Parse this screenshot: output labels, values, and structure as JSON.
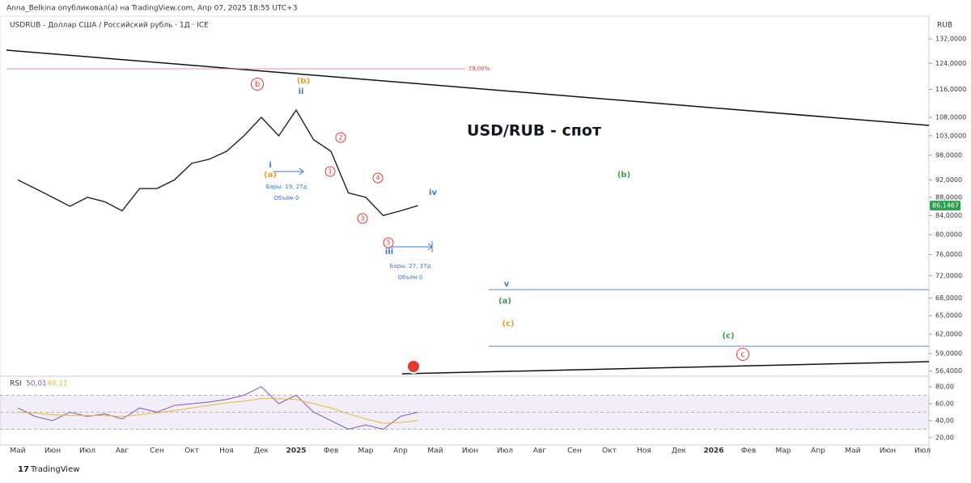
{
  "header": {
    "publisher": "Anna_Belkina опубликовал(а) на TradingView.com, Апр 07, 2025 18:55 UTC+3",
    "symbol": "USDRUB - Доллар США / Российский рубль · 1Д · ICE",
    "currency": "RUB",
    "price_tag": "86,1467"
  },
  "chart_data": [
    {
      "type": "line",
      "log_scale": true,
      "color": "#222222",
      "categories": [
        "Май",
        null,
        "Июн",
        null,
        "Июл",
        null,
        "Авг",
        null,
        "Сен",
        null,
        "Окт",
        null,
        "Ноя",
        null,
        "Дек",
        null,
        "2025",
        null,
        "Фев",
        null,
        "Мар",
        null,
        "Апр",
        null,
        "Май",
        null,
        "Июн",
        null,
        "Июл",
        null,
        "Авг",
        null,
        "Сен",
        null,
        "Окт",
        null,
        "Ноя",
        null,
        "Дек",
        null,
        "2026",
        null,
        "Фев",
        null,
        "Мар",
        null,
        "Апр",
        null,
        "Май",
        null,
        "Июн",
        null,
        "Июл",
        null
      ],
      "values": [
        92,
        90,
        88,
        86,
        88,
        87,
        85,
        90,
        90,
        92,
        96,
        97,
        99,
        103,
        108,
        103,
        110,
        102,
        99,
        89,
        88,
        84,
        85,
        86.1467,
        null,
        null,
        null,
        null,
        null,
        null,
        null,
        null,
        null,
        null,
        null,
        null,
        null,
        null,
        null,
        null,
        null,
        null,
        null,
        null,
        null,
        null,
        null,
        null,
        null,
        null,
        null,
        null,
        null,
        null
      ],
      "ylim": [
        55.9,
        137.6
      ],
      "yticks": [
        {
          "value": 132,
          "label": "132,0000"
        },
        {
          "value": 124,
          "label": "124,0000"
        },
        {
          "value": 116,
          "label": "116,0000"
        },
        {
          "value": 108,
          "label": "108,0000"
        },
        {
          "value": 103,
          "label": "103,0000"
        },
        {
          "value": 98,
          "label": "98,0000"
        },
        {
          "value": 92,
          "label": "92,0000"
        },
        {
          "value": 88,
          "label": "88,0000"
        },
        {
          "value": 84,
          "label": "84,0000"
        },
        {
          "value": 80,
          "label": "80,0000"
        },
        {
          "value": 76,
          "label": "76,0000"
        },
        {
          "value": 72,
          "label": "72,0000"
        },
        {
          "value": 68,
          "label": "68,0000"
        },
        {
          "value": 65,
          "label": "65,0000"
        },
        {
          "value": 62,
          "label": "62,0000"
        },
        {
          "value": 59,
          "label": "59,0000"
        },
        {
          "value": 56.4,
          "label": "56,4000"
        }
      ]
    },
    {
      "type": "line",
      "title": "RSI",
      "series": [
        {
          "color": "#7e57c2",
          "values": [
            55,
            45,
            40,
            50,
            45,
            48,
            42,
            55,
            50,
            58,
            60,
            62,
            65,
            70,
            80,
            60,
            70,
            50,
            40,
            30,
            35,
            30,
            45,
            50.01,
            null,
            null,
            null,
            null,
            null,
            null,
            null,
            null,
            null,
            null,
            null,
            null,
            null,
            null,
            null,
            null,
            null,
            null,
            null,
            null,
            null,
            null,
            null,
            null,
            null,
            null,
            null,
            null,
            null,
            null
          ],
          "readout": "50,01"
        },
        {
          "color": "#e8b830",
          "values": [
            50,
            49,
            47,
            46,
            46,
            46,
            45,
            47,
            49,
            52,
            55,
            58,
            61,
            63,
            66,
            66,
            65,
            60,
            55,
            48,
            42,
            37,
            38,
            40.11,
            null,
            null,
            null,
            null,
            null,
            null,
            null,
            null,
            null,
            null,
            null,
            null,
            null,
            null,
            null,
            null,
            null,
            null,
            null,
            null,
            null,
            null,
            null,
            null,
            null,
            null,
            null,
            null,
            null,
            null
          ],
          "readout": "40,11"
        }
      ],
      "ylim": [
        13.3,
        89.5
      ],
      "yticks": [
        {
          "value": 80,
          "label": "80,00"
        },
        {
          "value": 60,
          "label": "60,00"
        },
        {
          "value": 40,
          "label": "40,00"
        },
        {
          "value": 20,
          "label": "20,00"
        }
      ]
    }
  ],
  "annotations": [
    "b",
    "(b)",
    "ii",
    "i",
    "(a)",
    "2",
    "1",
    "4",
    "3",
    "5",
    "iii",
    "iv",
    "(b)",
    "v",
    "(a)",
    "(c)",
    "(c)",
    "c",
    "79,00%",
    "Бары: 19, 27д",
    "Объём 0",
    "Бары: 27, 37д",
    "Объём 0",
    "USD/RUB - спот"
  ],
  "footer": "TradingView"
}
